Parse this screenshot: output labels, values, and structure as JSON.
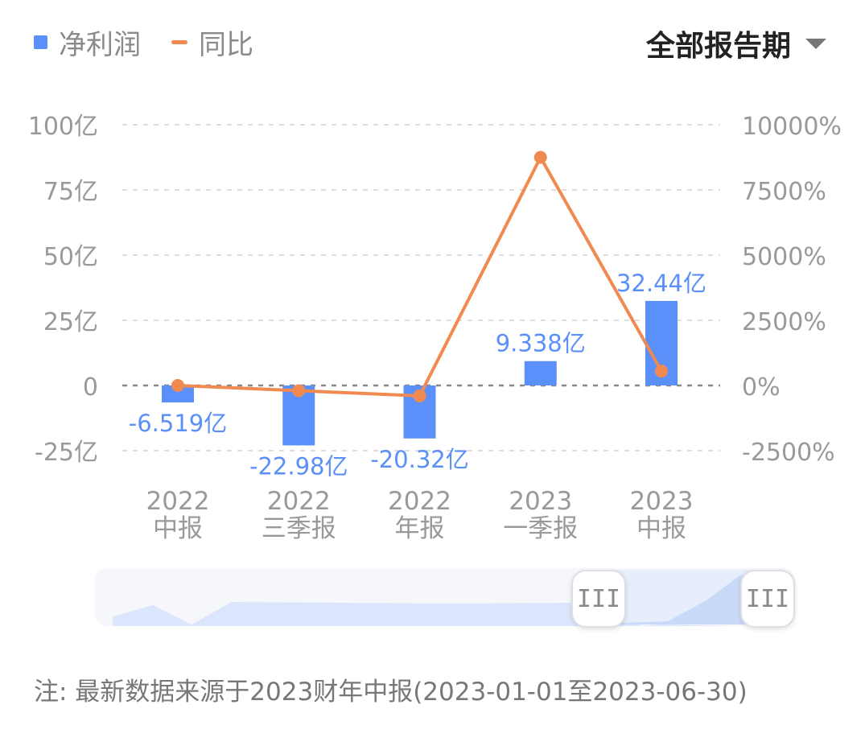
{
  "legend": {
    "bar_label": "净利润",
    "line_label": "同比"
  },
  "period_select": {
    "label": "全部报告期"
  },
  "note": "注: 最新数据来源于2023财年中报(2023-01-01至2023-06-30)",
  "slider": {
    "left_handle": "III",
    "right_handle": "III"
  },
  "colors": {
    "bar": "#5b8ff9",
    "line": "#f08a51",
    "label": "#5b8ff9",
    "axis_text": "#999999",
    "grid": "#dddddd"
  },
  "chart_data": {
    "type": "bar",
    "categories": [
      [
        "2022",
        "中报"
      ],
      [
        "2022",
        "三季报"
      ],
      [
        "2022",
        "年报"
      ],
      [
        "2023",
        "一季报"
      ],
      [
        "2023",
        "中报"
      ]
    ],
    "series": [
      {
        "name": "净利润",
        "type": "bar",
        "axis": "left",
        "values": [
          -6.519,
          -22.98,
          -20.32,
          9.338,
          32.44
        ],
        "labels": [
          "-6.519亿",
          "-22.98亿",
          "-20.32亿",
          "9.338亿",
          "32.44亿"
        ]
      },
      {
        "name": "同比",
        "type": "line",
        "axis": "right",
        "values": [
          0,
          -200,
          -400,
          8750,
          550
        ]
      }
    ],
    "left_axis": {
      "ylim": [
        -25,
        100
      ],
      "ticks": [
        100,
        75,
        50,
        25,
        0,
        -25
      ],
      "tick_labels": [
        "100亿",
        "75亿",
        "50亿",
        "25亿",
        "0",
        "-25亿"
      ]
    },
    "right_axis": {
      "ylim": [
        -2500,
        10000
      ],
      "tick_labels": [
        "10000%",
        "7500%",
        "5000%",
        "2500%",
        "0%",
        "-2500%"
      ]
    },
    "grid": true,
    "legend_position": "top-left"
  }
}
